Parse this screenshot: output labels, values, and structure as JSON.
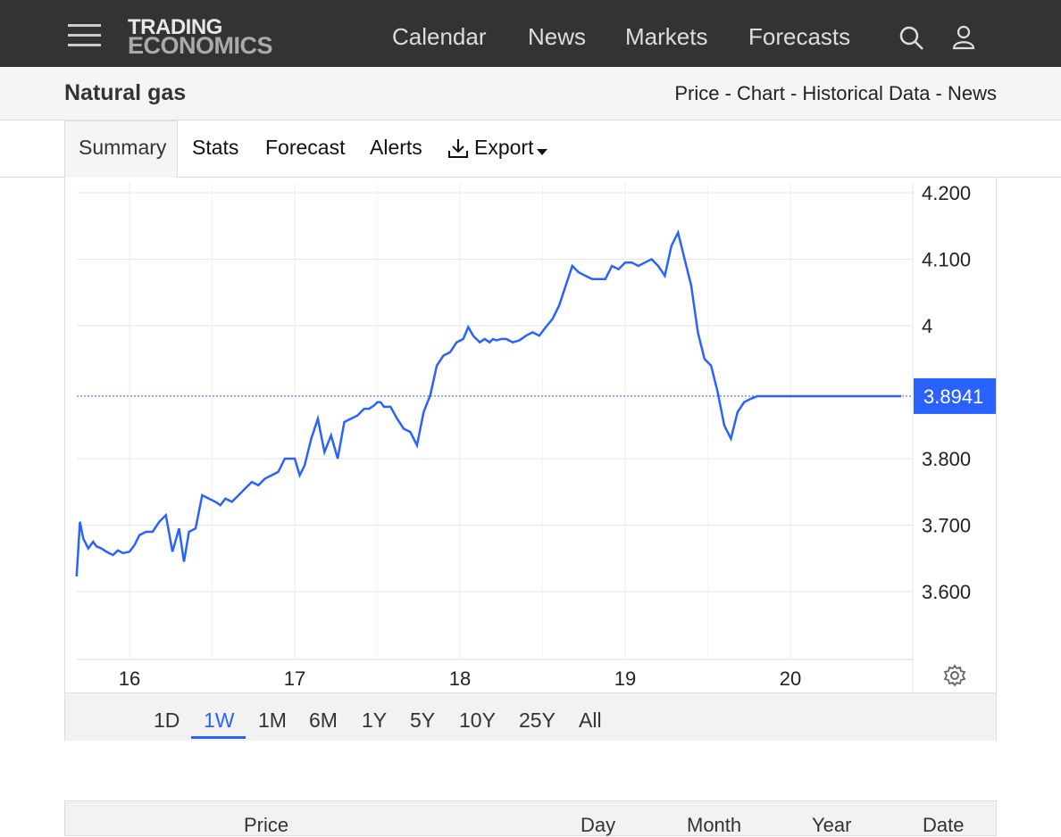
{
  "header": {
    "logo_line1": "TRADING",
    "logo_line2": "ECONOMICS",
    "nav": [
      "Calendar",
      "News",
      "Markets",
      "Forecasts"
    ]
  },
  "page": {
    "title": "Natural gas",
    "links": "Price - Chart - Historical Data - News"
  },
  "tabs": [
    "Summary",
    "Stats",
    "Forecast",
    "Alerts",
    "Export"
  ],
  "ranges": [
    "1D",
    "1W",
    "1M",
    "6M",
    "1Y",
    "5Y",
    "10Y",
    "25Y",
    "All"
  ],
  "active_range": "1W",
  "table_headers": [
    "Price",
    "Day",
    "Month",
    "Year",
    "Date"
  ],
  "colors": {
    "line": "#2962ff",
    "badge": "#2962ff",
    "topbar": "#333333"
  },
  "chart_data": {
    "type": "line",
    "title": "",
    "xlabel": "",
    "ylabel": "",
    "x_ticks": [
      "16",
      "17",
      "18",
      "19",
      "20"
    ],
    "y_ticks": [
      "3.600",
      "3.700",
      "3.800",
      "4",
      "4.100",
      "4.200"
    ],
    "ylim": [
      3.5,
      4.2
    ],
    "last_value": "3.8941",
    "grid": true,
    "series": [
      {
        "x": [
          15.68,
          15.7,
          15.72,
          15.75,
          15.78,
          15.8,
          15.83,
          15.86,
          15.9,
          15.93,
          15.96,
          16.0,
          16.03,
          16.06,
          16.1,
          16.14,
          16.18,
          16.22,
          16.26,
          16.3,
          16.33,
          16.36,
          16.4,
          16.42,
          16.44,
          16.48,
          16.52,
          16.55,
          16.58,
          16.62,
          16.66,
          16.7,
          16.74,
          16.78,
          16.82,
          16.86,
          16.9,
          16.94,
          16.98,
          17.0,
          17.03,
          17.06,
          17.1,
          17.14,
          17.18,
          17.22,
          17.26,
          17.3,
          17.34,
          17.38,
          17.42,
          17.45,
          17.48,
          17.5,
          17.52,
          17.54,
          17.58,
          17.62,
          17.66,
          17.7,
          17.74,
          17.78,
          17.82,
          17.86,
          17.9,
          17.94,
          17.98,
          18.02,
          18.05,
          18.08,
          18.12,
          18.15,
          18.18,
          18.2,
          18.22,
          18.25,
          18.28,
          18.32,
          18.36,
          18.4,
          18.44,
          18.48,
          18.52,
          18.56,
          18.6,
          18.64,
          18.68,
          18.72,
          18.76,
          18.8,
          18.84,
          18.88,
          18.92,
          18.96,
          19.0,
          19.04,
          19.08,
          19.12,
          19.16,
          19.2,
          19.24,
          19.28,
          19.32,
          19.36,
          19.4,
          19.44,
          19.48,
          19.52,
          19.56,
          19.6,
          19.64,
          19.68,
          19.72,
          19.76,
          19.8,
          19.84,
          19.88,
          19.92,
          19.96,
          20.0,
          20.04,
          20.08,
          20.12,
          20.16,
          20.2,
          20.22,
          20.25,
          20.27,
          20.3,
          20.32,
          20.35,
          20.38,
          20.42,
          20.45,
          20.48,
          20.5,
          20.53,
          20.56,
          20.58,
          20.6,
          20.62,
          20.64,
          20.67
        ],
        "y": [
          3.623,
          3.705,
          3.68,
          3.665,
          3.675,
          3.668,
          3.665,
          3.66,
          3.655,
          3.662,
          3.658,
          3.66,
          3.67,
          3.685,
          3.69,
          3.69,
          3.705,
          3.715,
          3.66,
          3.695,
          3.645,
          3.69,
          3.695,
          3.72,
          3.745,
          3.74,
          3.735,
          3.73,
          3.74,
          3.735,
          3.745,
          3.755,
          3.765,
          3.76,
          3.77,
          3.775,
          3.78,
          3.8,
          3.8,
          3.8,
          3.775,
          3.79,
          3.83,
          3.86,
          3.81,
          3.835,
          3.8,
          3.855,
          3.86,
          3.865,
          3.875,
          3.875,
          3.88,
          3.885,
          3.885,
          3.878,
          3.878,
          3.86,
          3.845,
          3.84,
          3.82,
          3.87,
          3.895,
          3.94,
          3.955,
          3.96,
          3.975,
          3.98,
          3.998,
          3.985,
          3.975,
          3.98,
          3.975,
          3.98,
          3.978,
          3.98,
          3.98,
          3.975,
          3.978,
          3.985,
          3.99,
          3.985,
          3.998,
          4.01,
          4.03,
          4.06,
          4.09,
          4.08,
          4.075,
          4.07,
          4.07,
          4.07,
          4.09,
          4.085,
          4.095,
          4.095,
          4.09,
          4.095,
          4.1,
          4.09,
          4.075,
          4.12,
          4.14,
          4.1,
          4.06,
          3.99,
          3.95,
          3.94,
          3.9,
          3.85,
          3.83,
          3.87,
          3.885,
          3.89,
          3.894,
          3.894,
          3.894,
          3.894,
          3.894,
          3.894,
          3.894,
          3.894,
          3.894,
          3.894,
          3.894,
          3.894,
          3.894,
          3.894,
          3.894,
          3.894,
          3.894,
          3.894,
          3.894,
          3.894,
          3.894,
          3.894,
          3.894,
          3.894,
          3.894,
          3.894,
          3.894,
          3.894,
          3.894
        ]
      }
    ]
  }
}
